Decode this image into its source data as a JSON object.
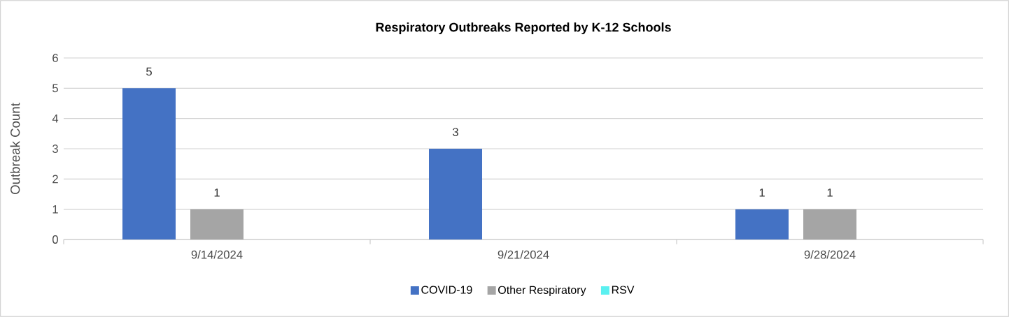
{
  "chart_data": {
    "type": "bar",
    "title": "Respiratory Outbreaks Reported by K-12 Schools",
    "ylabel": "Outbreak Count",
    "categories": [
      "9/14/2024",
      "9/21/2024",
      "9/28/2024"
    ],
    "series": [
      {
        "name": "COVID-19",
        "color": "#4472c4",
        "values": [
          5,
          3,
          1
        ]
      },
      {
        "name": "Other Respiratory",
        "color": "#a5a5a5",
        "values": [
          1,
          null,
          1
        ]
      },
      {
        "name": "RSV",
        "color": "#5af0f0",
        "values": [
          null,
          null,
          null
        ]
      }
    ],
    "ylim": [
      0,
      6
    ],
    "yticks": [
      0,
      1,
      2,
      3,
      4,
      5,
      6
    ],
    "grid": "y",
    "legend": "bottom",
    "data_labels": true
  }
}
